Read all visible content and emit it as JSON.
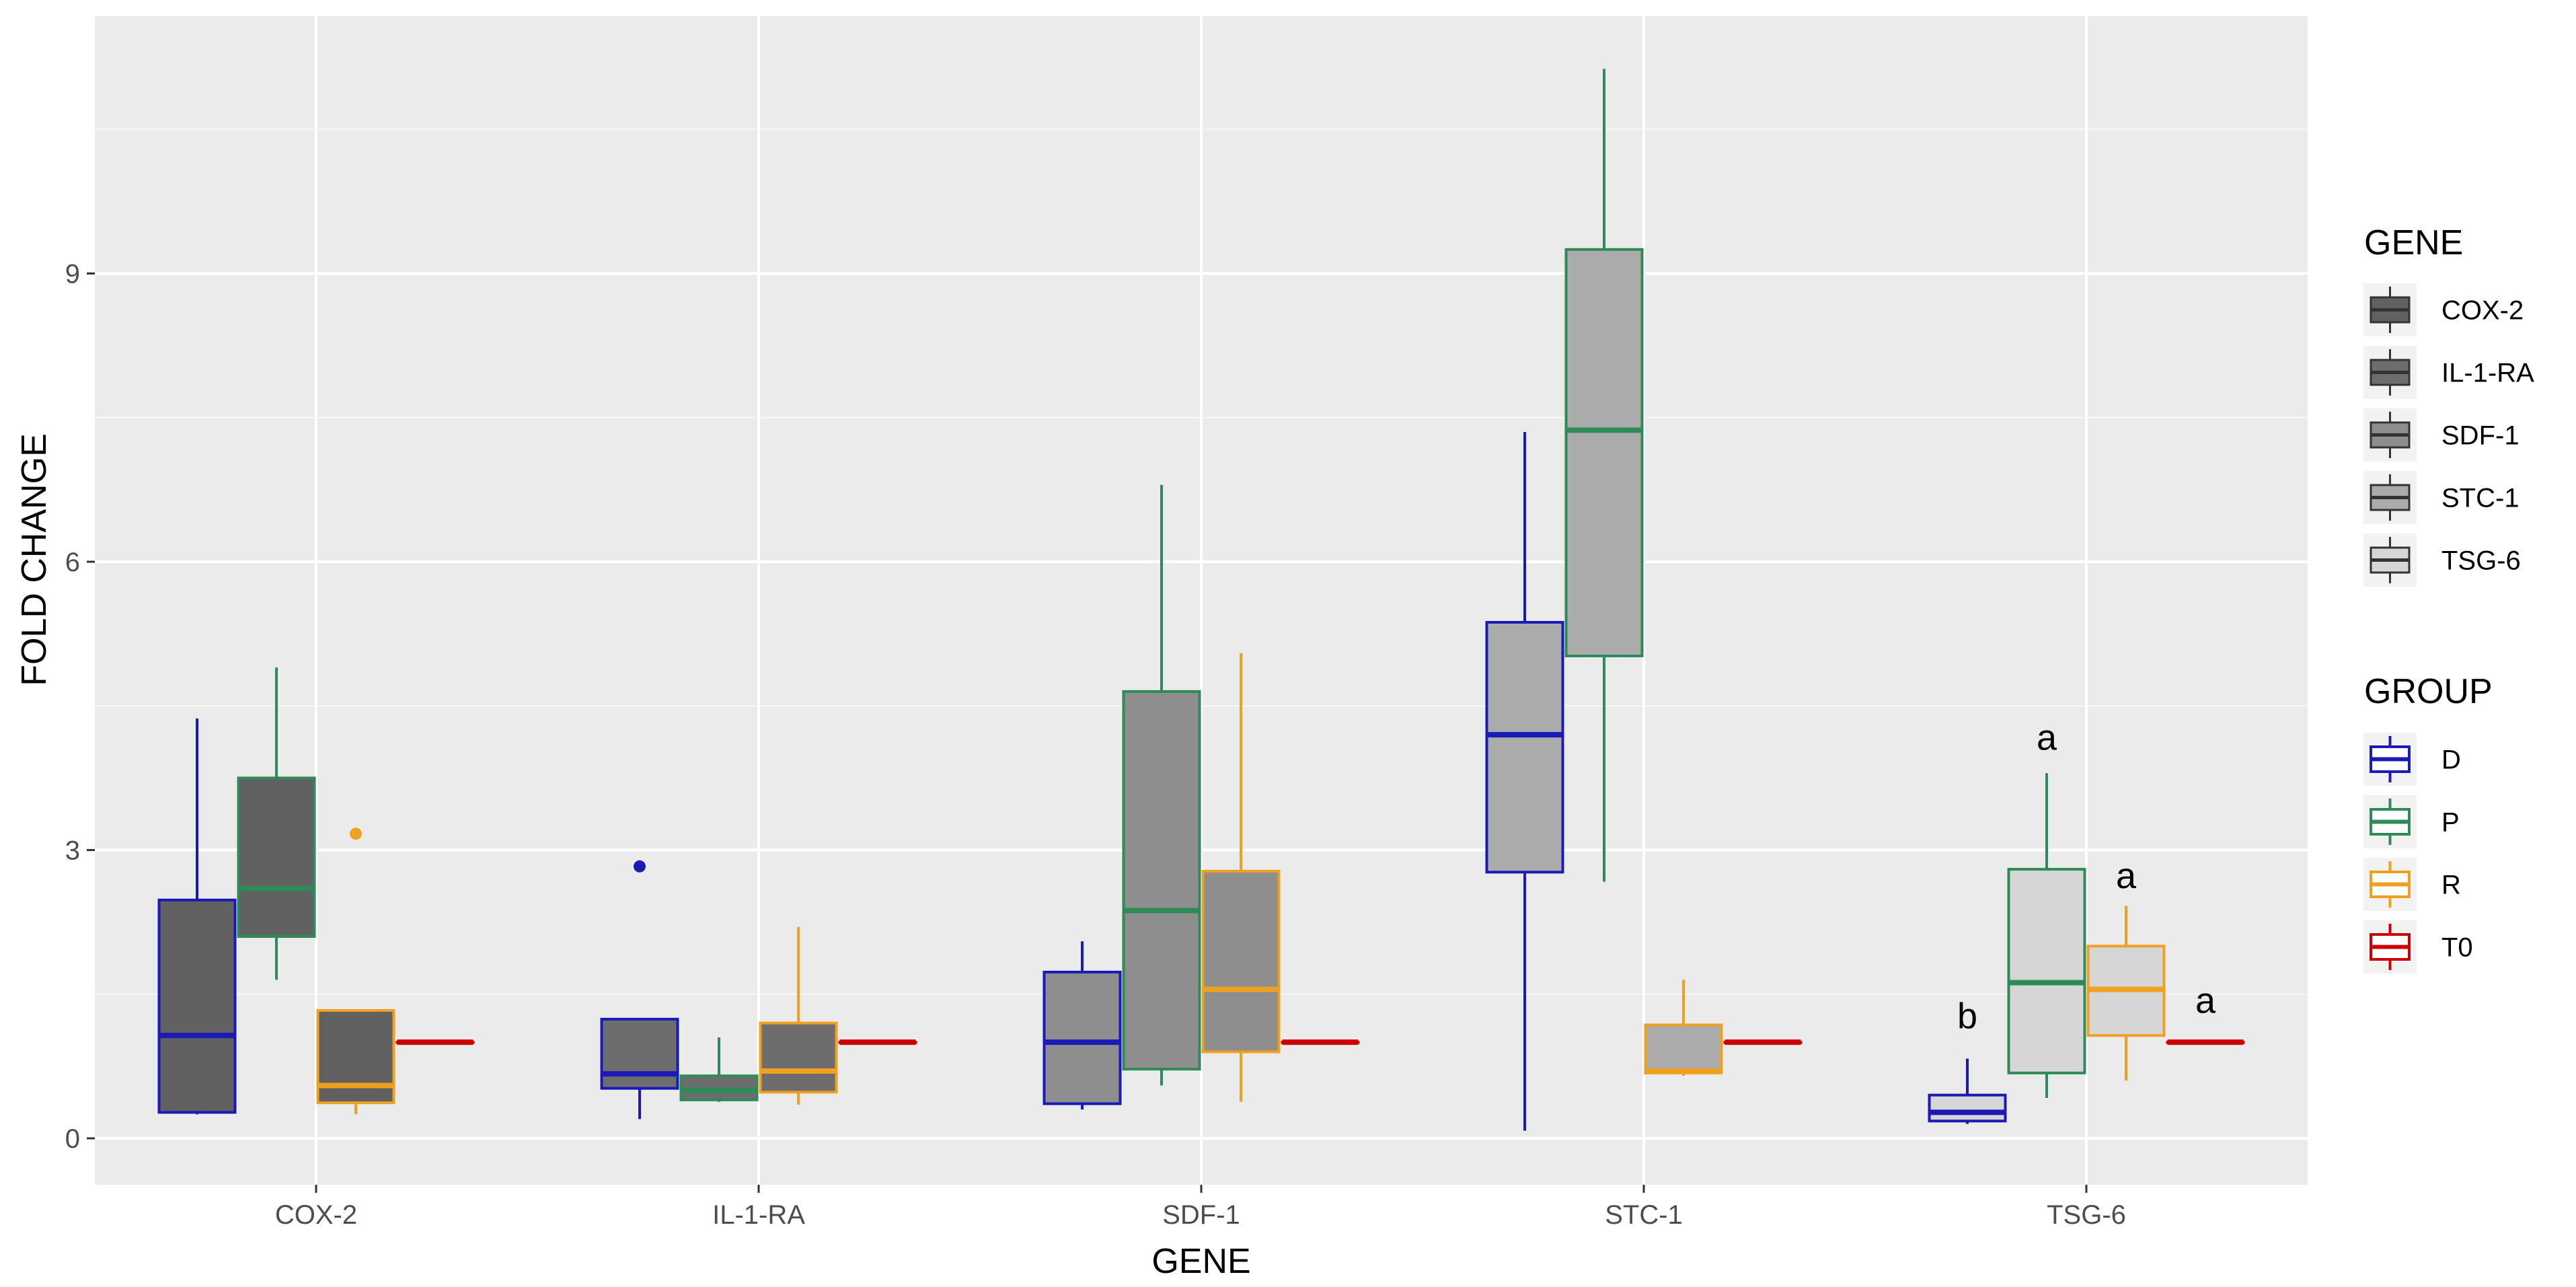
{
  "chart_data": {
    "type": "box",
    "xlabel": "GENE",
    "ylabel": "FOLD CHANGE",
    "ylim": [
      -0.5,
      11.6
    ],
    "yticks": [
      0,
      3,
      6,
      9
    ],
    "yticklabels": [
      "0",
      "3",
      "6",
      "9"
    ],
    "categories": [
      "COX-2",
      "IL-1-RA",
      "SDF-1",
      "STC-1",
      "TSG-6"
    ],
    "groups": [
      "D",
      "P",
      "R",
      "T0"
    ],
    "group_colors": {
      "D": "#1a1ab8",
      "P": "#2e8b57",
      "R": "#f0a020",
      "T0": "#cc0000"
    },
    "gene_fills": {
      "COX-2": "#616161",
      "IL-1-RA": "#6d6d6d",
      "SDF-1": "#8e8e8e",
      "STC-1": "#ababab",
      "TSG-6": "#d6d6d6"
    },
    "series": [
      {
        "gene": "COX-2",
        "group": "D",
        "min": 0.25,
        "q1": 0.27,
        "median": 1.07,
        "q3": 2.48,
        "max": 4.37,
        "outliers": []
      },
      {
        "gene": "COX-2",
        "group": "P",
        "min": 1.65,
        "q1": 2.1,
        "median": 2.6,
        "q3": 3.75,
        "max": 4.9,
        "outliers": []
      },
      {
        "gene": "COX-2",
        "group": "R",
        "min": 0.25,
        "q1": 0.37,
        "median": 0.55,
        "q3": 1.33,
        "max": 1.33,
        "outliers": [
          3.17
        ]
      },
      {
        "gene": "COX-2",
        "group": "T0",
        "min": 1.0,
        "q1": 1.0,
        "median": 1.0,
        "q3": 1.0,
        "max": 1.0,
        "outliers": []
      },
      {
        "gene": "IL-1-RA",
        "group": "D",
        "min": 0.2,
        "q1": 0.52,
        "median": 0.67,
        "q3": 1.24,
        "max": 1.24,
        "outliers": [
          2.83
        ]
      },
      {
        "gene": "IL-1-RA",
        "group": "P",
        "min": 0.38,
        "q1": 0.4,
        "median": 0.5,
        "q3": 0.65,
        "max": 1.05,
        "outliers": []
      },
      {
        "gene": "IL-1-RA",
        "group": "R",
        "min": 0.35,
        "q1": 0.48,
        "median": 0.7,
        "q3": 1.2,
        "max": 2.2,
        "outliers": []
      },
      {
        "gene": "IL-1-RA",
        "group": "T0",
        "min": 1.0,
        "q1": 1.0,
        "median": 1.0,
        "q3": 1.0,
        "max": 1.0,
        "outliers": []
      },
      {
        "gene": "SDF-1",
        "group": "D",
        "min": 0.3,
        "q1": 0.36,
        "median": 1.0,
        "q3": 1.73,
        "max": 2.05,
        "outliers": []
      },
      {
        "gene": "SDF-1",
        "group": "P",
        "min": 0.55,
        "q1": 0.72,
        "median": 2.37,
        "q3": 4.65,
        "max": 6.8,
        "outliers": []
      },
      {
        "gene": "SDF-1",
        "group": "R",
        "min": 0.38,
        "q1": 0.9,
        "median": 1.55,
        "q3": 2.78,
        "max": 5.05,
        "outliers": []
      },
      {
        "gene": "SDF-1",
        "group": "T0",
        "min": 1.0,
        "q1": 1.0,
        "median": 1.0,
        "q3": 1.0,
        "max": 1.0,
        "outliers": []
      },
      {
        "gene": "STC-1",
        "group": "D",
        "min": 0.08,
        "q1": 2.77,
        "median": 4.2,
        "q3": 5.37,
        "max": 7.35,
        "outliers": []
      },
      {
        "gene": "STC-1",
        "group": "P",
        "min": 2.67,
        "q1": 5.02,
        "median": 7.37,
        "q3": 9.25,
        "max": 11.13,
        "outliers": []
      },
      {
        "gene": "STC-1",
        "group": "R",
        "min": 0.65,
        "q1": 0.68,
        "median": 0.7,
        "q3": 1.18,
        "max": 1.65,
        "outliers": []
      },
      {
        "gene": "STC-1",
        "group": "T0",
        "min": 1.0,
        "q1": 1.0,
        "median": 1.0,
        "q3": 1.0,
        "max": 1.0,
        "outliers": []
      },
      {
        "gene": "TSG-6",
        "group": "D",
        "min": 0.15,
        "q1": 0.18,
        "median": 0.27,
        "q3": 0.45,
        "max": 0.83,
        "outliers": []
      },
      {
        "gene": "TSG-6",
        "group": "P",
        "min": 0.42,
        "q1": 0.68,
        "median": 1.62,
        "q3": 2.8,
        "max": 3.8,
        "outliers": []
      },
      {
        "gene": "TSG-6",
        "group": "R",
        "min": 0.6,
        "q1": 1.07,
        "median": 1.55,
        "q3": 2.0,
        "max": 2.42,
        "outliers": []
      },
      {
        "gene": "TSG-6",
        "group": "T0",
        "min": 1.0,
        "q1": 1.0,
        "median": 1.0,
        "q3": 1.0,
        "max": 1.0,
        "outliers": []
      }
    ],
    "annotations": [
      {
        "gene": "TSG-6",
        "group": "D",
        "text": "b",
        "y": 1.27
      },
      {
        "gene": "TSG-6",
        "group": "P",
        "text": "a",
        "y": 4.17
      },
      {
        "gene": "TSG-6",
        "group": "R",
        "text": "a",
        "y": 2.73
      },
      {
        "gene": "TSG-6",
        "group": "T0",
        "text": "a",
        "y": 1.43
      }
    ],
    "legend": {
      "placement": "right",
      "gene_title": "GENE",
      "gene_items": [
        "COX-2",
        "IL-1-RA",
        "SDF-1",
        "STC-1",
        "TSG-6"
      ],
      "group_title": "GROUP",
      "group_items": [
        "D",
        "P",
        "R",
        "T0"
      ]
    },
    "grid": true
  }
}
